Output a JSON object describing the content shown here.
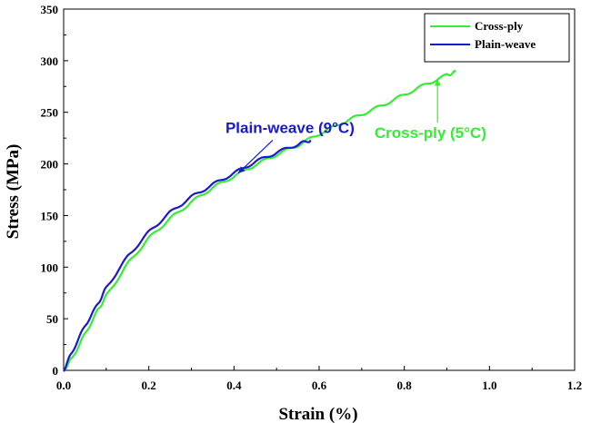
{
  "chart_data": {
    "type": "line",
    "xlabel": "Strain (%)",
    "ylabel": "Stress (MPa)",
    "xlim": [
      0.0,
      1.2
    ],
    "ylim": [
      0,
      350
    ],
    "x_ticks": [
      "0.0",
      "0.2",
      "0.4",
      "0.6",
      "0.8",
      "1.0",
      "1.2"
    ],
    "y_ticks": [
      "0",
      "50",
      "100",
      "150",
      "200",
      "250",
      "300",
      "350"
    ],
    "grid": false,
    "legend_position": "top-right",
    "series": [
      {
        "name": "Cross-ply",
        "color": "#33ee33",
        "x": [
          0.0,
          0.02,
          0.05,
          0.08,
          0.1,
          0.15,
          0.2,
          0.25,
          0.3,
          0.35,
          0.4,
          0.45,
          0.5,
          0.55,
          0.6,
          0.65,
          0.7,
          0.75,
          0.8,
          0.85,
          0.9,
          0.92
        ],
        "y": [
          0,
          12,
          35,
          58,
          72,
          103,
          128,
          147,
          163,
          177,
          188,
          199,
          209,
          218,
          229,
          239,
          248,
          257,
          267,
          277,
          286,
          289
        ]
      },
      {
        "name": "Plain-weave",
        "color": "#1a1acc",
        "x": [
          0.0,
          0.02,
          0.05,
          0.08,
          0.1,
          0.15,
          0.2,
          0.25,
          0.3,
          0.35,
          0.4,
          0.45,
          0.5,
          0.55,
          0.58
        ],
        "y": [
          0,
          18,
          43,
          64,
          80,
          110,
          134,
          153,
          168,
          180,
          191,
          202,
          211,
          219,
          223
        ]
      }
    ],
    "annotations": [
      {
        "text": "Plain-weave (9°C)",
        "color": "#1a1acc",
        "x": 0.38,
        "y": 230,
        "arrow_to": [
          0.41,
          191
        ]
      },
      {
        "text": "Cross-ply (5°C)",
        "color": "#33ee33",
        "x": 0.73,
        "y": 225,
        "arrow_to": [
          0.878,
          282
        ]
      }
    ]
  }
}
